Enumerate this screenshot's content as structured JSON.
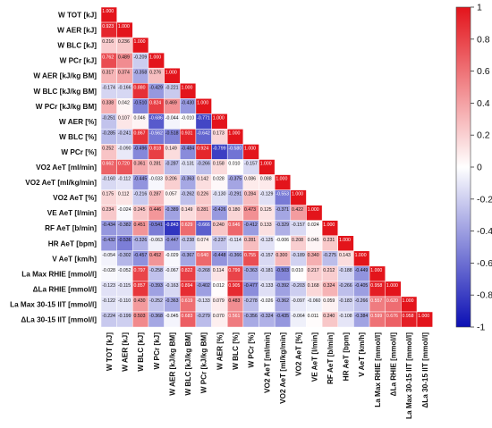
{
  "chart_data": {
    "type": "heatmap",
    "variables": [
      "W TOT [kJ]",
      "W AER [kJ]",
      "W BLC [kJ]",
      "W PCr [kJ]",
      "W AER [kJ/kg BM]",
      "W BLC [kJ/kg BM]",
      "W PCr [kJ/kg BM]",
      "W AER [%]",
      "W BLC [%]",
      "W PCr [%]",
      "VO2 AeT [ml/min]",
      "VO2 AeT [ml/kg/min]",
      "VO2 AeT [%]",
      "VE AeT [l/min]",
      "RF AeT [b/min]",
      "HR AeT [bpm]",
      "V AeT [km/h]",
      "La Max RHIE [mmol/l]",
      "ΔLa RHIE [mmol/l]",
      "La Max 30-15 IIT [mmol/l]",
      "ΔLa 30-15 IIT [mmol/l]"
    ],
    "matrix": [
      [
        1.0
      ],
      [
        0.923,
        1.0
      ],
      [
        0.216,
        0.236,
        1.0
      ],
      [
        0.762,
        0.489,
        -0.209,
        1.0
      ],
      [
        0.317,
        0.374,
        -0.358,
        0.276,
        1.0
      ],
      [
        -0.174,
        -0.166,
        0.88,
        -0.429,
        -0.221,
        1.0
      ],
      [
        0.338,
        0.042,
        -0.51,
        0.824,
        0.469,
        -0.43,
        1.0
      ],
      [
        -0.251,
        0.107,
        0.046,
        -0.686,
        -0.044,
        -0.01,
        -0.771,
        1.0
      ],
      [
        -0.285,
        -0.241,
        0.867,
        -0.562,
        -0.518,
        0.931,
        -0.642,
        0.173,
        1.0
      ],
      [
        0.252,
        -0.09,
        -0.496,
        0.818,
        0.149,
        -0.484,
        0.924,
        -0.799,
        -0.58,
        1.0
      ],
      [
        0.662,
        0.72,
        0.361,
        0.281,
        -0.287,
        -0.131,
        -0.266,
        0.158,
        0.01,
        -0.157,
        1.0
      ],
      [
        -0.16,
        -0.112,
        -0.445,
        -0.033,
        0.206,
        -0.363,
        0.142,
        0.028,
        -0.375,
        0.086,
        0.088,
        1.0
      ],
      [
        0.175,
        0.112,
        -0.216,
        0.287,
        0.057,
        -0.262,
        0.226,
        -0.13,
        -0.291,
        0.284,
        -0.129,
        -0.553,
        1.0
      ],
      [
        0.234,
        -0.024,
        0.245,
        0.446,
        -0.389,
        0.149,
        0.281,
        -0.426,
        0.18,
        0.473,
        0.125,
        -0.371,
        0.422,
        1.0
      ],
      [
        -0.434,
        -0.382,
        0.451,
        -0.541,
        -0.843,
        0.629,
        -0.666,
        0.24,
        0.646,
        -0.412,
        0.133,
        -0.329,
        -0.157,
        0.024,
        1.0
      ],
      [
        -0.432,
        -0.536,
        -0.326,
        -0.063,
        -0.447,
        -0.238,
        0.074,
        -0.237,
        -0.114,
        0.281,
        -0.125,
        -0.006,
        0.208,
        0.045,
        0.231,
        1.0
      ],
      [
        -0.054,
        -0.302,
        -0.457,
        0.452,
        -0.029,
        -0.367,
        0.64,
        -0.448,
        -0.366,
        0.755,
        -0.157,
        0.3,
        -0.189,
        0.34,
        -0.275,
        0.143,
        1.0
      ],
      [
        -0.028,
        -0.052,
        0.797,
        -0.258,
        -0.067,
        0.822,
        -0.268,
        0.114,
        0.799,
        -0.363,
        -0.181,
        -0.503,
        0.01,
        0.217,
        0.212,
        -0.188,
        -0.449,
        1.0
      ],
      [
        -0.123,
        -0.115,
        0.857,
        -0.393,
        -0.163,
        0.894,
        -0.402,
        0.012,
        0.905,
        -0.477,
        -0.133,
        -0.392,
        -0.203,
        0.168,
        0.324,
        -0.266,
        -0.405,
        0.958,
        1.0
      ],
      [
        -0.122,
        -0.11,
        0.43,
        -0.252,
        -0.363,
        0.619,
        -0.133,
        0.079,
        0.483,
        -0.278,
        -0.026,
        -0.362,
        -0.097,
        -0.06,
        0.059,
        -0.183,
        -0.266,
        0.557,
        0.62,
        1.0
      ],
      [
        -0.224,
        -0.199,
        0.503,
        -0.368,
        -0.045,
        0.683,
        -0.279,
        0.07,
        0.561,
        -0.356,
        -0.324,
        -0.435,
        -0.064,
        0.011,
        0.24,
        -0.108,
        -0.384,
        0.599,
        0.676,
        0.958,
        1.0
      ]
    ],
    "colorbar": {
      "ticks": [
        "1",
        "0.8",
        "0.6",
        "0.4",
        "0.2",
        "0",
        "-0.2",
        "-0.4",
        "-0.6",
        "-0.8",
        "-1"
      ],
      "range": [
        -1,
        1
      ],
      "colors": {
        "negative": "#0b0fb4",
        "zero": "#ffffff",
        "positive": "#e3141b"
      }
    }
  }
}
